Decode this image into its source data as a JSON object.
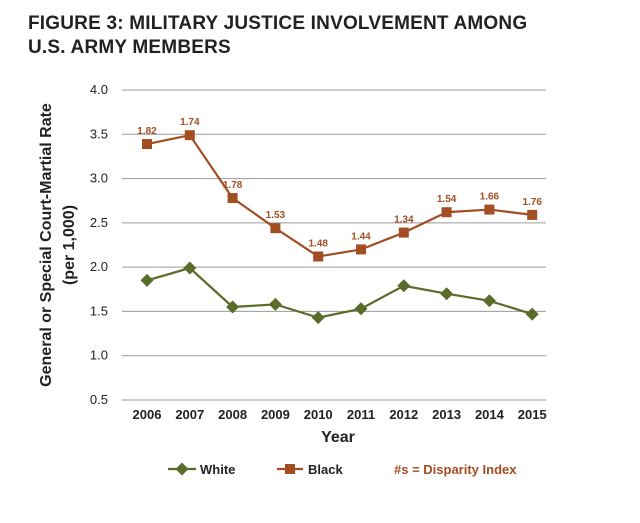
{
  "title_lines": [
    "FIGURE 3: MILITARY JUSTICE INVOLVEMENT AMONG",
    "U.S. ARMY MEMBERS"
  ],
  "chart_data": {
    "type": "line",
    "title": "FIGURE 3: MILITARY JUSTICE INVOLVEMENT AMONG U.S. ARMY MEMBERS",
    "xlabel": "Year",
    "ylabel_lines": [
      "General or Special Court-Martial Rate",
      "(per 1,000)"
    ],
    "categories": [
      "2006",
      "2007",
      "2008",
      "2009",
      "2010",
      "2011",
      "2012",
      "2013",
      "2014",
      "2015"
    ],
    "ylim": [
      0.5,
      4.0
    ],
    "yticks": [
      "0.5",
      "1.0",
      "1.5",
      "2.0",
      "2.5",
      "3.0",
      "3.5",
      "4.0"
    ],
    "grid": "horizontal",
    "series": [
      {
        "name": "White",
        "marker": "diamond",
        "color": "#5a6b2a",
        "values": [
          1.85,
          1.99,
          1.55,
          1.58,
          1.43,
          1.53,
          1.79,
          1.7,
          1.62,
          1.47
        ]
      },
      {
        "name": "Black",
        "marker": "square",
        "color": "#a24e22",
        "values": [
          3.39,
          3.49,
          2.78,
          2.44,
          2.12,
          2.2,
          2.39,
          2.62,
          2.65,
          2.59
        ],
        "labels": [
          "1.82",
          "1.74",
          "1.78",
          "1.53",
          "1.48",
          "1.44",
          "1.34",
          "1.54",
          "1.66",
          "1.76"
        ]
      }
    ],
    "legend_note": "#s = Disparity Index",
    "legend_note_color": "#a24e22",
    "legend_position": "bottom"
  }
}
